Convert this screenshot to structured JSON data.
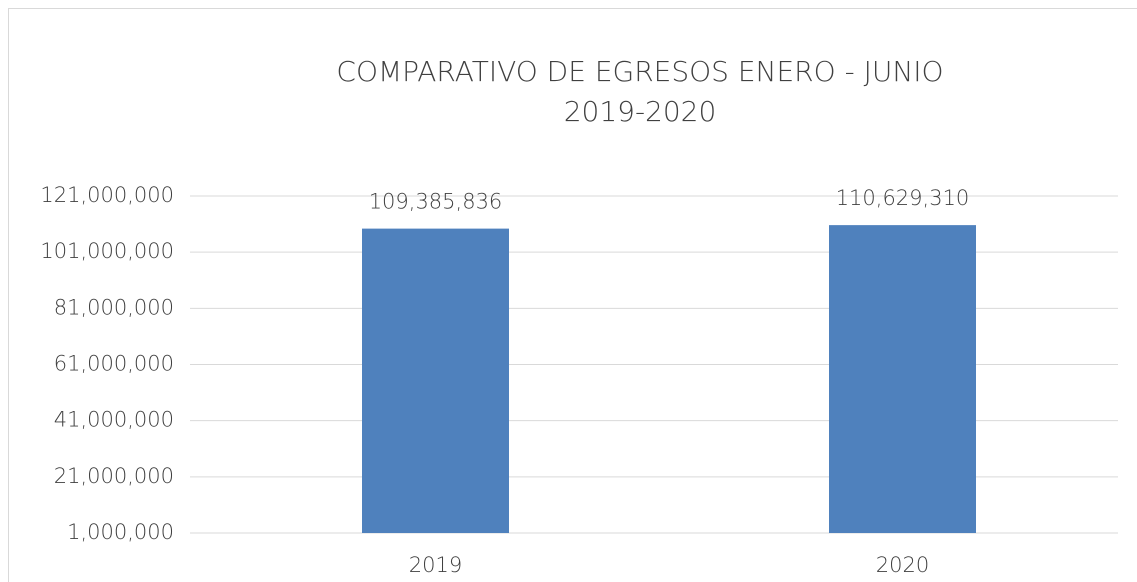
{
  "chart_data": {
    "type": "bar",
    "title": [
      "COMPARATIVO DE EGRESOS ENERO - JUNIO",
      "2019-2020"
    ],
    "categories": [
      "2019",
      "2020"
    ],
    "values": [
      109385836,
      110629310
    ],
    "value_labels": [
      "109,385,836",
      "110,629,310"
    ],
    "color": "#4f81bd",
    "ylim": [
      1000000,
      121000000
    ],
    "yticks": [
      {
        "value": 1000000,
        "label": "1,000,000"
      },
      {
        "value": 21000000,
        "label": "21,000,000"
      },
      {
        "value": 41000000,
        "label": "41,000,000"
      },
      {
        "value": 61000000,
        "label": "61,000,000"
      },
      {
        "value": 81000000,
        "label": "81,000,000"
      },
      {
        "value": 101000000,
        "label": "101,000,000"
      },
      {
        "value": 121000000,
        "label": "121,000,000"
      }
    ],
    "grid": true
  }
}
